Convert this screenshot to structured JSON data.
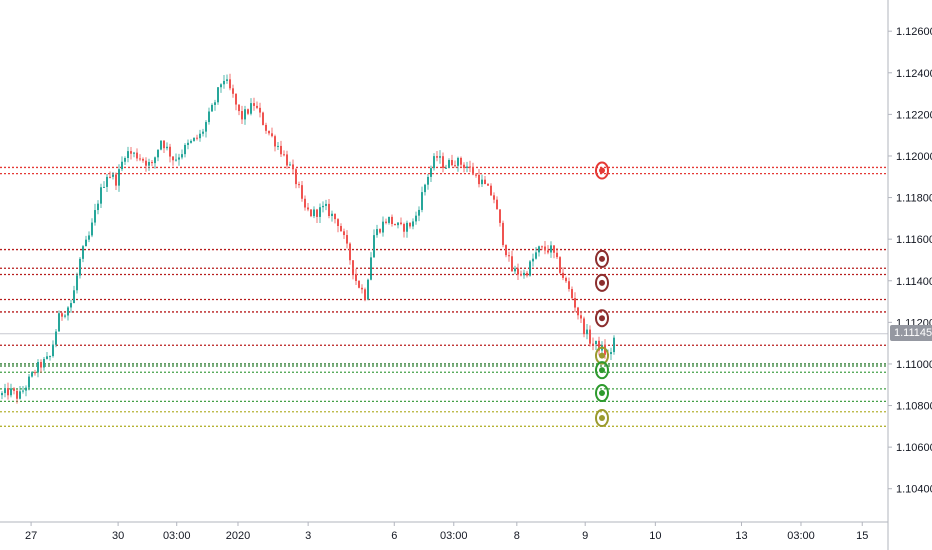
{
  "chart_data": {
    "type": "candlestick",
    "y_ticks": [
      "1.12600",
      "1.12400",
      "1.12200",
      "1.12000",
      "1.11800",
      "1.11600",
      "1.11400",
      "1.11200",
      "1.11000",
      "1.10800",
      "1.10600",
      "1.10400"
    ],
    "y_tick_values": [
      1.126,
      1.124,
      1.122,
      1.12,
      1.118,
      1.116,
      1.114,
      1.112,
      1.11,
      1.108,
      1.106,
      1.104
    ],
    "ylim": [
      1.1024,
      1.1275
    ],
    "x_ticks": [
      {
        "label": "27",
        "pos": 0.035
      },
      {
        "label": "30",
        "pos": 0.133
      },
      {
        "label": "03:00",
        "pos": 0.199
      },
      {
        "label": "2020",
        "pos": 0.268
      },
      {
        "label": "3",
        "pos": 0.347
      },
      {
        "label": "6",
        "pos": 0.444
      },
      {
        "label": "03:00",
        "pos": 0.511
      },
      {
        "label": "8",
        "pos": 0.582
      },
      {
        "label": "9",
        "pos": 0.659
      },
      {
        "label": "10",
        "pos": 0.738
      },
      {
        "label": "13",
        "pos": 0.835
      },
      {
        "label": "03:00",
        "pos": 0.902
      },
      {
        "label": "15",
        "pos": 0.971
      }
    ],
    "current_price": "1.11145",
    "current_price_value": 1.11145,
    "levels": [
      {
        "price": 1.11945,
        "color": "#e53935"
      },
      {
        "price": 1.11915,
        "color": "#e53935"
      },
      {
        "price": 1.1155,
        "color": "#b71c1c"
      },
      {
        "price": 1.1146,
        "color": "#b71c1c"
      },
      {
        "price": 1.1143,
        "color": "#b71c1c"
      },
      {
        "price": 1.1131,
        "color": "#b71c1c"
      },
      {
        "price": 1.1125,
        "color": "#b71c1c"
      },
      {
        "price": 1.1109,
        "color": "#b71c1c"
      },
      {
        "price": 1.11,
        "color": "#2e7d32"
      },
      {
        "price": 1.1099,
        "color": "#2e7d32"
      },
      {
        "price": 1.1096,
        "color": "#43a047"
      },
      {
        "price": 1.1088,
        "color": "#43a047"
      },
      {
        "price": 1.1082,
        "color": "#43a047"
      },
      {
        "price": 1.1077,
        "color": "#b5b335"
      },
      {
        "price": 1.107,
        "color": "#b5b335"
      }
    ],
    "markers": [
      {
        "price": 1.1193,
        "color": "#e53935"
      },
      {
        "price": 1.11505,
        "color": "#8b2e2e"
      },
      {
        "price": 1.1139,
        "color": "#8b2e2e"
      },
      {
        "price": 1.1122,
        "color": "#8b2e2e"
      },
      {
        "price": 1.1104,
        "color": "#9a9a2e"
      },
      {
        "price": 1.1097,
        "color": "#2e9a2e"
      },
      {
        "price": 1.1086,
        "color": "#2e9a2e"
      },
      {
        "price": 1.1074,
        "color": "#9a9a2e"
      }
    ],
    "up_color": "#26a69a",
    "down_color": "#ef5350",
    "path": [
      [
        0,
        1.1085
      ],
      [
        0.01,
        1.1087
      ],
      [
        0.02,
        1.1084
      ],
      [
        0.04,
        1.1098
      ],
      [
        0.055,
        1.1103
      ],
      [
        0.065,
        1.1122
      ],
      [
        0.08,
        1.113
      ],
      [
        0.09,
        1.1152
      ],
      [
        0.1,
        1.1162
      ],
      [
        0.11,
        1.118
      ],
      [
        0.12,
        1.1192
      ],
      [
        0.13,
        1.1188
      ],
      [
        0.14,
        1.1202
      ],
      [
        0.155,
        1.12
      ],
      [
        0.17,
        1.1195
      ],
      [
        0.18,
        1.1208
      ],
      [
        0.195,
        1.1198
      ],
      [
        0.21,
        1.1205
      ],
      [
        0.225,
        1.121
      ],
      [
        0.24,
        1.1225
      ],
      [
        0.25,
        1.1238
      ],
      [
        0.26,
        1.123
      ],
      [
        0.27,
        1.1218
      ],
      [
        0.285,
        1.1225
      ],
      [
        0.3,
        1.1212
      ],
      [
        0.315,
        1.1203
      ],
      [
        0.325,
        1.1195
      ],
      [
        0.335,
        1.1185
      ],
      [
        0.34,
        1.1175
      ],
      [
        0.35,
        1.1172
      ],
      [
        0.365,
        1.1175
      ],
      [
        0.38,
        1.1168
      ],
      [
        0.39,
        1.1155
      ],
      [
        0.4,
        1.114
      ],
      [
        0.41,
        1.1133
      ],
      [
        0.42,
        1.1162
      ],
      [
        0.435,
        1.117
      ],
      [
        0.45,
        1.1165
      ],
      [
        0.465,
        1.1168
      ],
      [
        0.48,
        1.119
      ],
      [
        0.49,
        1.12
      ],
      [
        0.5,
        1.1195
      ],
      [
        0.51,
        1.1198
      ],
      [
        0.525,
        1.1195
      ],
      [
        0.54,
        1.1188
      ],
      [
        0.555,
        1.118
      ],
      [
        0.565,
        1.116
      ],
      [
        0.575,
        1.1145
      ],
      [
        0.59,
        1.1143
      ],
      [
        0.605,
        1.1155
      ],
      [
        0.62,
        1.1155
      ],
      [
        0.63,
        1.1145
      ],
      [
        0.645,
        1.113
      ],
      [
        0.655,
        1.1118
      ],
      [
        0.665,
        1.111
      ],
      [
        0.675,
        1.1108
      ],
      [
        0.685,
        1.1103
      ],
      [
        0.69,
        1.1112
      ]
    ],
    "plot_end_frac": 0.692
  }
}
